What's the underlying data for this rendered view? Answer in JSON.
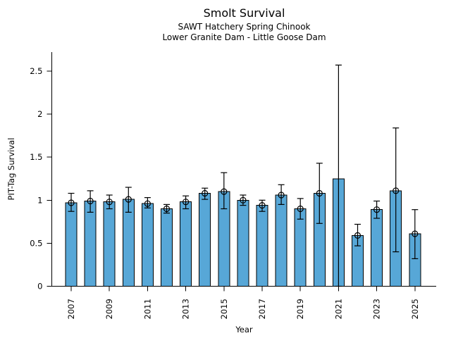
{
  "figure": {
    "title": "Smolt Survival",
    "subtitle_line1": "SAWT Hatchery Spring Chinook",
    "subtitle_line2": "Lower Granite Dam - Little Goose Dam"
  },
  "chart_data": {
    "type": "bar",
    "title": "Smolt Survival",
    "subtitle": [
      "SAWT Hatchery Spring Chinook",
      "Lower Granite Dam - Little Goose Dam"
    ],
    "xlabel": "Year",
    "ylabel": "PIT-Tag Survival",
    "ylim": [
      0,
      2.72
    ],
    "grid": false,
    "legend": false,
    "bar_color": "#57A7D7",
    "bar_edge_color": "#000000",
    "error_bar_color": "#000000",
    "marker_style": "open-circle",
    "yticks": {
      "values": [
        0,
        0.5,
        1,
        1.5,
        2,
        2.5
      ],
      "labels": [
        "0",
        "0.5",
        "1",
        "1.5",
        "2",
        "2.5"
      ]
    },
    "xticks": {
      "values": [
        2007,
        2009,
        2011,
        2013,
        2015,
        2017,
        2019,
        2021,
        2023,
        2025
      ],
      "labels": [
        "2007",
        "2009",
        "2011",
        "2013",
        "2015",
        "2017",
        "2019",
        "2021",
        "2023",
        "2025"
      ],
      "rotation": 90
    },
    "points": [
      {
        "year": 2007,
        "value": 0.97,
        "lo": 0.87,
        "hi": 1.08,
        "marker": true
      },
      {
        "year": 2008,
        "value": 0.99,
        "lo": 0.86,
        "hi": 1.11,
        "marker": true
      },
      {
        "year": 2009,
        "value": 0.98,
        "lo": 0.9,
        "hi": 1.06,
        "marker": true
      },
      {
        "year": 2010,
        "value": 1.01,
        "lo": 0.86,
        "hi": 1.15,
        "marker": true
      },
      {
        "year": 2011,
        "value": 0.96,
        "lo": 0.91,
        "hi": 1.03,
        "marker": true
      },
      {
        "year": 2012,
        "value": 0.9,
        "lo": 0.85,
        "hi": 0.95,
        "marker": true
      },
      {
        "year": 2013,
        "value": 0.98,
        "lo": 0.9,
        "hi": 1.05,
        "marker": true
      },
      {
        "year": 2014,
        "value": 1.08,
        "lo": 1.01,
        "hi": 1.14,
        "marker": true
      },
      {
        "year": 2015,
        "value": 1.1,
        "lo": 0.9,
        "hi": 1.32,
        "marker": true
      },
      {
        "year": 2016,
        "value": 1.0,
        "lo": 0.94,
        "hi": 1.06,
        "marker": true
      },
      {
        "year": 2017,
        "value": 0.94,
        "lo": 0.87,
        "hi": 1.0,
        "marker": true
      },
      {
        "year": 2018,
        "value": 1.06,
        "lo": 0.95,
        "hi": 1.18,
        "marker": true
      },
      {
        "year": 2019,
        "value": 0.9,
        "lo": 0.78,
        "hi": 1.02,
        "marker": true
      },
      {
        "year": 2020,
        "value": 1.08,
        "lo": 0.73,
        "hi": 1.43,
        "marker": true
      },
      {
        "year": 2021,
        "value": 1.25,
        "lo": 0.0,
        "hi": 2.57,
        "marker": false
      },
      {
        "year": 2022,
        "value": 0.59,
        "lo": 0.47,
        "hi": 0.72,
        "marker": true
      },
      {
        "year": 2023,
        "value": 0.89,
        "lo": 0.79,
        "hi": 0.99,
        "marker": true
      },
      {
        "year": 2024,
        "value": 1.11,
        "lo": 0.4,
        "hi": 1.84,
        "marker": true
      },
      {
        "year": 2025,
        "value": 0.61,
        "lo": 0.32,
        "hi": 0.89,
        "marker": true
      }
    ]
  }
}
